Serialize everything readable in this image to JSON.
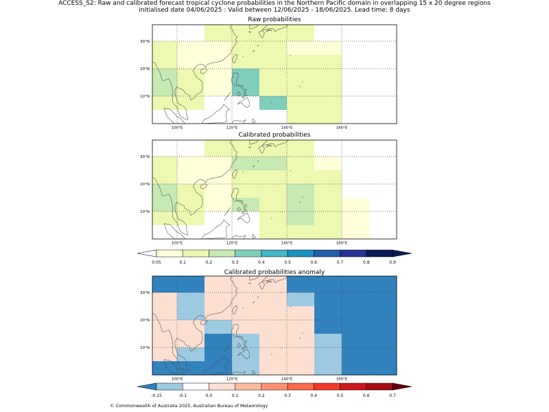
{
  "title": {
    "line1": "ACCESS_S2: Raw and calibrated forecast tropical cyclone probabilities in the Northern Pacific domain in overlapping 15 x 20 degree regions",
    "line2": "initialised date 04/06/2025 :  Valid between 12/06/2025 - 18/06/2025. Lead time: 8 days"
  },
  "axes": {
    "lon_range": [
      91,
      180
    ],
    "lat_range": [
      0,
      36
    ],
    "x_ticks": [
      100,
      120,
      140,
      160
    ],
    "x_tick_labels": [
      "100°E",
      "120°E",
      "140°E",
      "160°E"
    ],
    "y_ticks": [
      10,
      20,
      30
    ],
    "y_tick_labels": [
      "10°N",
      "20°N",
      "30°N"
    ],
    "grid": true
  },
  "grid_cells": {
    "lon_edges": [
      91,
      100,
      110,
      120,
      130,
      140,
      150,
      160,
      170,
      180
    ],
    "lat_edges": [
      0,
      5,
      10,
      15,
      20,
      25,
      30,
      36
    ],
    "note_rows_order": "from north to south"
  },
  "panels": [
    {
      "id": "raw",
      "title": "Raw probabilities",
      "colorscale": "prob",
      "values": [
        [
          0.03,
          0.03,
          0.12,
          0.12,
          0.12,
          0.12,
          0.03,
          0.03,
          0.03
        ],
        [
          0.12,
          0.07,
          0.07,
          0.12,
          0.12,
          0.07,
          0.07,
          0.03,
          0.03
        ],
        [
          0.12,
          0.07,
          0.07,
          0.12,
          0.12,
          0.12,
          0.12,
          0.03,
          0.03
        ],
        [
          0.22,
          0.12,
          0.07,
          0.33,
          0.12,
          0.12,
          0.12,
          0.03,
          0.03
        ],
        [
          0.22,
          0.12,
          0.07,
          0.33,
          0.12,
          0.12,
          0.12,
          0.03,
          0.03
        ],
        [
          0.12,
          0.12,
          0.03,
          0.03,
          0.33,
          0.12,
          0.12,
          0.03,
          0.03
        ],
        [
          0.03,
          0.03,
          0.03,
          0.03,
          0.03,
          0.12,
          0.12,
          0.03,
          0.03
        ]
      ]
    },
    {
      "id": "calibrated",
      "title": "Calibrated probabilities",
      "colorscale": "prob",
      "values": [
        [
          0.03,
          0.03,
          0.12,
          0.12,
          0.12,
          0.12,
          0.03,
          0.03,
          0.03
        ],
        [
          0.12,
          0.07,
          0.07,
          0.22,
          0.22,
          0.12,
          0.07,
          0.03,
          0.03
        ],
        [
          0.12,
          0.07,
          0.07,
          0.12,
          0.12,
          0.12,
          0.12,
          0.03,
          0.03
        ],
        [
          0.22,
          0.12,
          0.07,
          0.12,
          0.12,
          0.22,
          0.12,
          0.03,
          0.03
        ],
        [
          0.22,
          0.12,
          0.07,
          0.22,
          0.12,
          0.22,
          0.12,
          0.07,
          0.03
        ],
        [
          0.12,
          0.12,
          0.03,
          0.03,
          0.12,
          0.22,
          0.12,
          0.07,
          0.03
        ],
        [
          0.03,
          0.03,
          0.03,
          0.03,
          0.12,
          0.12,
          0.12,
          0.07,
          0.03
        ]
      ]
    },
    {
      "id": "anomaly",
      "title": "Calibrated probabilities anomaly",
      "colorscale": "anom",
      "values": [
        [
          -0.2,
          -0.2,
          0.0,
          0.05,
          0.0,
          -0.2,
          -0.2,
          -0.2,
          -0.2
        ],
        [
          0.0,
          -0.12,
          0.0,
          0.05,
          0.0,
          -0.12,
          -0.2,
          -0.2,
          -0.2
        ],
        [
          0.0,
          -0.12,
          0.0,
          0.05,
          0.0,
          0.0,
          -0.2,
          -0.2,
          -0.2
        ],
        [
          0.05,
          0.0,
          -0.12,
          0.0,
          0.05,
          0.0,
          -0.2,
          -0.2,
          -0.2
        ],
        [
          0.0,
          0.0,
          -0.2,
          -0.12,
          0.05,
          0.0,
          -0.12,
          -0.2,
          -0.2
        ],
        [
          0.0,
          -0.12,
          -0.2,
          -0.12,
          0.05,
          0.0,
          -0.12,
          -0.2,
          -0.2
        ],
        [
          -0.2,
          -0.2,
          -0.2,
          -0.12,
          0.0,
          0.0,
          -0.12,
          -0.2,
          -0.2
        ]
      ]
    }
  ],
  "colorbars": {
    "prob": {
      "bounds": [
        0.05,
        0.1,
        0.2,
        0.3,
        0.4,
        0.5,
        0.6,
        0.7,
        0.8,
        0.9
      ],
      "tick_labels": [
        "0.05",
        "0.1",
        "0.2",
        "0.3",
        "0.4",
        "0.5",
        "0.6",
        "0.7",
        "0.8",
        "0.9"
      ],
      "under_color": "#ffffff",
      "colors": [
        "#ffffd9",
        "#edf8b1",
        "#c7e9b4",
        "#7fcdbb",
        "#41b6c4",
        "#1d91c0",
        "#225ea8",
        "#253494",
        "#081d58"
      ],
      "over_color": "#081d58"
    },
    "anom": {
      "bounds": [
        -0.15,
        -0.1,
        0.0,
        0.1,
        0.2,
        0.3,
        0.4,
        0.5,
        0.6,
        0.7
      ],
      "tick_labels": [
        "-0.15",
        "-0.1",
        "0.0",
        "0.1",
        "0.2",
        "0.3",
        "0.4",
        "0.5",
        "0.6",
        "0.7"
      ],
      "under_color": "#3182bd",
      "colors": [
        "#9ecae1",
        "#ffffff",
        "#fee0d2",
        "#fcbba1",
        "#fc9272",
        "#fb6a4a",
        "#ef3b2c",
        "#cb181d",
        "#a50f15"
      ],
      "over_color": "#67000d"
    }
  },
  "coastline_color": "#555555",
  "footer": "© Commonwealth of Australia 2025, Australian Bureau of Meteorology"
}
